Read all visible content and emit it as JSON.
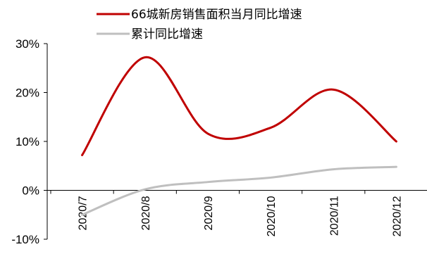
{
  "chart_data": {
    "type": "line",
    "title": "",
    "xlabel": "",
    "ylabel": "",
    "categories": [
      "2020/7",
      "2020/8",
      "2020/9",
      "2020/10",
      "2020/11",
      "2020/12"
    ],
    "y_tick_labels": [
      "30%",
      "20%",
      "10%",
      "0%",
      "-10%"
    ],
    "y_tick_values": [
      30,
      20,
      10,
      0,
      -10
    ],
    "ylim": [
      -10,
      30
    ],
    "y_unit": "%",
    "grid": false,
    "legend_position": "top-center",
    "series": [
      {
        "name": "66城新房销售面积当月同比增速",
        "color": "#c00000",
        "values": [
          7.2,
          27.2,
          11.6,
          12.8,
          20.6,
          10.0
        ]
      },
      {
        "name": "累计同比增速",
        "color": "#bfbfbf",
        "values": [
          -5.0,
          0.2,
          1.7,
          2.6,
          4.3,
          4.8
        ]
      }
    ]
  }
}
